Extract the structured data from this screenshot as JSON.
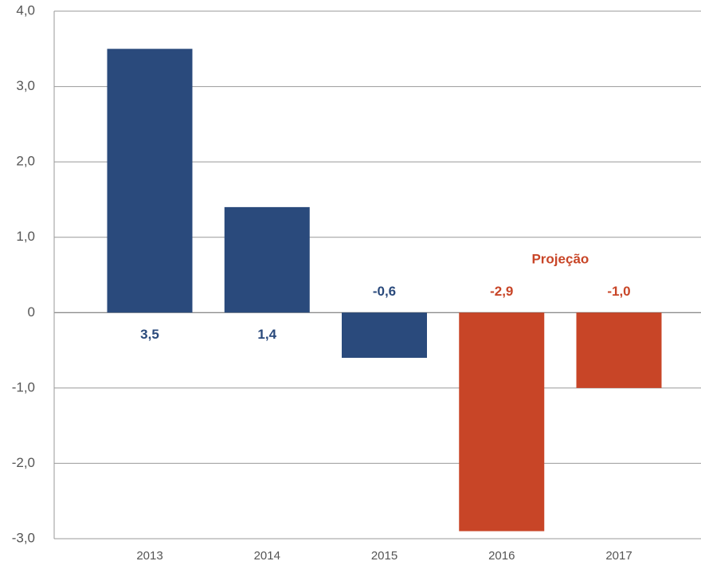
{
  "chart_data": {
    "type": "bar",
    "categories": [
      "2013",
      "2014",
      "2015",
      "2016",
      "2017"
    ],
    "values": [
      3.5,
      1.4,
      -0.6,
      -2.9,
      -1.0
    ],
    "value_labels": [
      "3,5",
      "1,4",
      "-0,6",
      "-2,9",
      "-1,0"
    ],
    "colors": [
      "#2a4a7c",
      "#2a4a7c",
      "#2a4a7c",
      "#c84527",
      "#c84527"
    ],
    "annotation": "Projeção",
    "annotation_color": "#c84527",
    "ylim": [
      -3,
      4
    ],
    "yticks": [
      {
        "value": -3,
        "label": "-3,0"
      },
      {
        "value": -2,
        "label": "-2,0"
      },
      {
        "value": -1,
        "label": "-1,0"
      },
      0,
      {
        "value": 1,
        "label": "1,0"
      },
      {
        "value": 2,
        "label": "2,0"
      },
      {
        "value": 3,
        "label": "3,0"
      },
      {
        "value": 4,
        "label": "4,0"
      }
    ],
    "grid": true
  }
}
